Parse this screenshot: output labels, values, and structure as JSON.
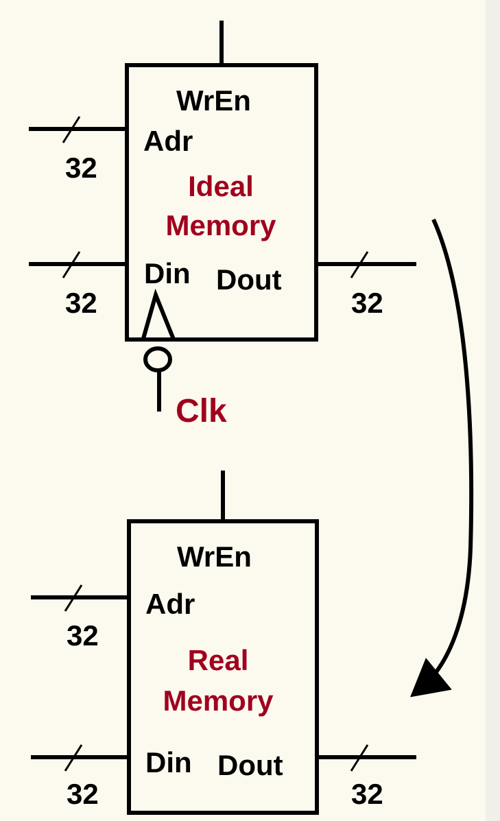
{
  "colors": {
    "background": "#fcf9ef",
    "ink": "#000000",
    "accent": "#a0001e"
  },
  "ideal_memory": {
    "port_wren": "WrEn",
    "port_adr": "Adr",
    "title_line1": "Ideal",
    "title_line2": "Memory",
    "port_din": "Din",
    "port_dout": "Dout",
    "width_adr": "32",
    "width_din": "32",
    "width_dout": "32",
    "clock_label": "Clk"
  },
  "real_memory": {
    "port_wren": "WrEn",
    "port_adr": "Adr",
    "title_line1": "Real",
    "title_line2": "Memory",
    "port_din": "Din",
    "port_dout": "Dout",
    "width_adr": "32",
    "width_din": "32",
    "width_dout": "32"
  }
}
